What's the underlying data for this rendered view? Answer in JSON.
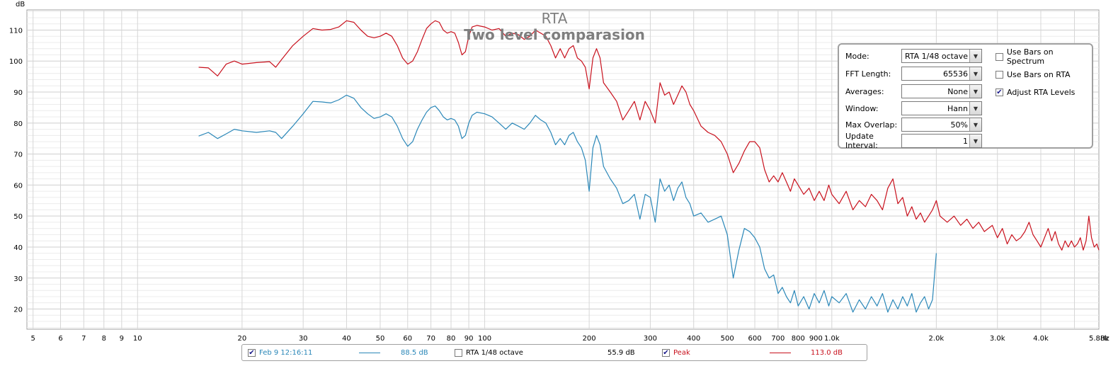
{
  "chart_data": {
    "type": "line",
    "title": "RTA",
    "subtitle": "Two level comparasion",
    "ylabel": "dB",
    "xunit": "Hz",
    "xscale": "log",
    "xlim": [
      4.8,
      5880
    ],
    "ylim": [
      13.5,
      116.5
    ],
    "y_ticks": [
      "20",
      "30",
      "40",
      "50",
      "60",
      "70",
      "80",
      "90",
      "100",
      "110"
    ],
    "x_ticks": [
      "5",
      "6",
      "7",
      "8",
      "9",
      "10",
      "20",
      "30",
      "40",
      "50",
      "60",
      "70",
      "80",
      "90",
      "100",
      "200",
      "300",
      "400",
      "500",
      "600",
      "700",
      "800",
      "900",
      "1.0k",
      "2.0k",
      "3.0k",
      "4.0k",
      "5.88k"
    ],
    "grid": true,
    "series": [
      {
        "name": "Peak",
        "color": "#c8101c",
        "points": [
          [
            15,
            98
          ],
          [
            16,
            97.8
          ],
          [
            17,
            95.2
          ],
          [
            18,
            99
          ],
          [
            19,
            100
          ],
          [
            20,
            99
          ],
          [
            22,
            99.5
          ],
          [
            24,
            99.8
          ],
          [
            25,
            98
          ],
          [
            26,
            100.5
          ],
          [
            28,
            105
          ],
          [
            30,
            108
          ],
          [
            32,
            110.5
          ],
          [
            34,
            110
          ],
          [
            36,
            110.2
          ],
          [
            38,
            111
          ],
          [
            40,
            113
          ],
          [
            42,
            112.5
          ],
          [
            44,
            110
          ],
          [
            46,
            108
          ],
          [
            48,
            107.5
          ],
          [
            50,
            108
          ],
          [
            52,
            109
          ],
          [
            54,
            108
          ],
          [
            56,
            105
          ],
          [
            58,
            101
          ],
          [
            60,
            99
          ],
          [
            62,
            100
          ],
          [
            64,
            103
          ],
          [
            66,
            107
          ],
          [
            68,
            110.5
          ],
          [
            70,
            112
          ],
          [
            72,
            113
          ],
          [
            74,
            112.5
          ],
          [
            76,
            110
          ],
          [
            78,
            109
          ],
          [
            80,
            109.5
          ],
          [
            82,
            109
          ],
          [
            84,
            106
          ],
          [
            86,
            102
          ],
          [
            88,
            103
          ],
          [
            90,
            108
          ],
          [
            92,
            111
          ],
          [
            95,
            111.5
          ],
          [
            100,
            111
          ],
          [
            105,
            110
          ],
          [
            110,
            110.5
          ],
          [
            115,
            108
          ],
          [
            120,
            109
          ],
          [
            125,
            108.5
          ],
          [
            130,
            107
          ],
          [
            135,
            108
          ],
          [
            140,
            110
          ],
          [
            145,
            109
          ],
          [
            150,
            108
          ],
          [
            155,
            105
          ],
          [
            160,
            101
          ],
          [
            165,
            104
          ],
          [
            170,
            101
          ],
          [
            175,
            104
          ],
          [
            180,
            105
          ],
          [
            185,
            101
          ],
          [
            190,
            100
          ],
          [
            195,
            98
          ],
          [
            200,
            91
          ],
          [
            205,
            101
          ],
          [
            210,
            104
          ],
          [
            215,
            101
          ],
          [
            220,
            93
          ],
          [
            230,
            90
          ],
          [
            240,
            87
          ],
          [
            250,
            81
          ],
          [
            260,
            84
          ],
          [
            270,
            87
          ],
          [
            280,
            81
          ],
          [
            290,
            87
          ],
          [
            300,
            84
          ],
          [
            310,
            80
          ],
          [
            320,
            93
          ],
          [
            330,
            89
          ],
          [
            340,
            90
          ],
          [
            350,
            86
          ],
          [
            360,
            89
          ],
          [
            370,
            92
          ],
          [
            380,
            90
          ],
          [
            390,
            86
          ],
          [
            400,
            84
          ],
          [
            420,
            79
          ],
          [
            440,
            77
          ],
          [
            460,
            76
          ],
          [
            480,
            74
          ],
          [
            500,
            70
          ],
          [
            520,
            64
          ],
          [
            540,
            67
          ],
          [
            560,
            71
          ],
          [
            580,
            74
          ],
          [
            600,
            74
          ],
          [
            620,
            72
          ],
          [
            640,
            65
          ],
          [
            660,
            61
          ],
          [
            680,
            63
          ],
          [
            700,
            61
          ],
          [
            720,
            64
          ],
          [
            740,
            61
          ],
          [
            760,
            58
          ],
          [
            780,
            62
          ],
          [
            800,
            60
          ],
          [
            830,
            57
          ],
          [
            860,
            59
          ],
          [
            890,
            55
          ],
          [
            920,
            58
          ],
          [
            950,
            55
          ],
          [
            980,
            60
          ],
          [
            1000,
            57
          ],
          [
            1050,
            54
          ],
          [
            1100,
            58
          ],
          [
            1150,
            52
          ],
          [
            1200,
            55
          ],
          [
            1250,
            53
          ],
          [
            1300,
            57
          ],
          [
            1350,
            55
          ],
          [
            1400,
            52
          ],
          [
            1450,
            59
          ],
          [
            1500,
            62
          ],
          [
            1550,
            54
          ],
          [
            1600,
            56
          ],
          [
            1650,
            50
          ],
          [
            1700,
            53
          ],
          [
            1750,
            49
          ],
          [
            1800,
            51
          ],
          [
            1850,
            48
          ],
          [
            1900,
            50
          ],
          [
            1950,
            52
          ],
          [
            2000,
            55
          ],
          [
            2050,
            50
          ],
          [
            2150,
            48
          ],
          [
            2250,
            50
          ],
          [
            2350,
            47
          ],
          [
            2450,
            49
          ],
          [
            2550,
            46
          ],
          [
            2650,
            48
          ],
          [
            2750,
            45
          ],
          [
            2900,
            47
          ],
          [
            3000,
            43
          ],
          [
            3100,
            46
          ],
          [
            3200,
            41
          ],
          [
            3300,
            44
          ],
          [
            3400,
            42
          ],
          [
            3500,
            43
          ],
          [
            3600,
            45
          ],
          [
            3700,
            48
          ],
          [
            3800,
            44
          ],
          [
            3900,
            42
          ],
          [
            4000,
            40
          ],
          [
            4100,
            43
          ],
          [
            4200,
            46
          ],
          [
            4300,
            42
          ],
          [
            4400,
            45
          ],
          [
            4500,
            41
          ],
          [
            4600,
            39
          ],
          [
            4700,
            42
          ],
          [
            4800,
            40
          ],
          [
            4900,
            42
          ],
          [
            5000,
            40
          ],
          [
            5100,
            41
          ],
          [
            5200,
            43
          ],
          [
            5300,
            39
          ],
          [
            5400,
            42
          ],
          [
            5500,
            50
          ],
          [
            5600,
            43
          ],
          [
            5700,
            40
          ],
          [
            5800,
            41
          ],
          [
            5880,
            39
          ]
        ]
      },
      {
        "name": "Feb 9 12:16:11",
        "color": "#2a87b8",
        "points": [
          [
            15,
            75.8
          ],
          [
            16,
            77
          ],
          [
            17,
            75
          ],
          [
            18,
            76.5
          ],
          [
            19,
            78
          ],
          [
            20,
            77.5
          ],
          [
            22,
            77
          ],
          [
            24,
            77.5
          ],
          [
            25,
            77
          ],
          [
            26,
            75
          ],
          [
            28,
            79
          ],
          [
            30,
            83
          ],
          [
            32,
            87
          ],
          [
            34,
            86.8
          ],
          [
            36,
            86.5
          ],
          [
            38,
            87.5
          ],
          [
            40,
            89
          ],
          [
            42,
            88
          ],
          [
            44,
            85
          ],
          [
            46,
            83
          ],
          [
            48,
            81.5
          ],
          [
            50,
            82
          ],
          [
            52,
            83
          ],
          [
            54,
            82
          ],
          [
            56,
            79
          ],
          [
            58,
            75
          ],
          [
            60,
            72.5
          ],
          [
            62,
            74
          ],
          [
            64,
            78
          ],
          [
            66,
            81
          ],
          [
            68,
            83.5
          ],
          [
            70,
            85
          ],
          [
            72,
            85.5
          ],
          [
            74,
            84
          ],
          [
            76,
            82
          ],
          [
            78,
            81
          ],
          [
            80,
            81.5
          ],
          [
            82,
            81
          ],
          [
            84,
            79
          ],
          [
            86,
            75
          ],
          [
            88,
            76
          ],
          [
            90,
            80
          ],
          [
            92,
            82.5
          ],
          [
            95,
            83.5
          ],
          [
            100,
            83
          ],
          [
            105,
            82
          ],
          [
            110,
            80
          ],
          [
            115,
            78
          ],
          [
            120,
            80
          ],
          [
            125,
            79
          ],
          [
            130,
            78
          ],
          [
            135,
            80
          ],
          [
            140,
            82.5
          ],
          [
            145,
            81
          ],
          [
            150,
            80
          ],
          [
            155,
            77
          ],
          [
            160,
            73
          ],
          [
            165,
            75
          ],
          [
            170,
            73
          ],
          [
            175,
            76
          ],
          [
            180,
            77
          ],
          [
            185,
            74
          ],
          [
            190,
            72
          ],
          [
            195,
            68
          ],
          [
            200,
            58
          ],
          [
            205,
            72
          ],
          [
            210,
            76
          ],
          [
            215,
            73
          ],
          [
            220,
            66
          ],
          [
            230,
            62
          ],
          [
            240,
            59
          ],
          [
            250,
            54
          ],
          [
            260,
            55
          ],
          [
            270,
            57
          ],
          [
            280,
            49
          ],
          [
            290,
            57
          ],
          [
            300,
            56
          ],
          [
            310,
            48
          ],
          [
            320,
            62
          ],
          [
            330,
            58
          ],
          [
            340,
            60
          ],
          [
            350,
            55
          ],
          [
            360,
            59
          ],
          [
            370,
            61
          ],
          [
            380,
            56
          ],
          [
            390,
            54
          ],
          [
            400,
            50
          ],
          [
            420,
            51
          ],
          [
            440,
            48
          ],
          [
            460,
            49
          ],
          [
            480,
            50
          ],
          [
            500,
            44
          ],
          [
            520,
            30
          ],
          [
            540,
            39
          ],
          [
            560,
            46
          ],
          [
            580,
            45
          ],
          [
            600,
            43
          ],
          [
            620,
            40
          ],
          [
            640,
            33
          ],
          [
            660,
            30
          ],
          [
            680,
            31
          ],
          [
            700,
            25
          ],
          [
            720,
            27
          ],
          [
            740,
            24
          ],
          [
            760,
            22
          ],
          [
            780,
            26
          ],
          [
            800,
            21
          ],
          [
            830,
            24
          ],
          [
            860,
            20
          ],
          [
            890,
            25
          ],
          [
            920,
            22
          ],
          [
            950,
            26
          ],
          [
            980,
            21
          ],
          [
            1000,
            24
          ],
          [
            1050,
            22
          ],
          [
            1100,
            25
          ],
          [
            1150,
            19
          ],
          [
            1200,
            23
          ],
          [
            1250,
            20
          ],
          [
            1300,
            24
          ],
          [
            1350,
            21
          ],
          [
            1400,
            25
          ],
          [
            1450,
            19
          ],
          [
            1500,
            23
          ],
          [
            1550,
            20
          ],
          [
            1600,
            24
          ],
          [
            1650,
            21
          ],
          [
            1700,
            25
          ],
          [
            1750,
            19
          ],
          [
            1800,
            22
          ],
          [
            1850,
            24
          ],
          [
            1900,
            20
          ],
          [
            1950,
            23
          ],
          [
            2000,
            38
          ]
        ]
      }
    ]
  },
  "controls": {
    "mode_label": "Mode:",
    "mode_value": "RTA 1/48 octave",
    "fft_label": "FFT Length:",
    "fft_value": "65536",
    "averages_label": "Averages:",
    "averages_value": "None",
    "window_label": "Window:",
    "window_value": "Hann",
    "overlap_label": "Max Overlap:",
    "overlap_value": "50%",
    "update_label": "Update Interval:",
    "update_value": "1",
    "bars_spectrum_label": "Use Bars on Spectrum",
    "bars_spectrum_checked": false,
    "bars_rta_label": "Use Bars on RTA",
    "bars_rta_checked": false,
    "adjust_label": "Adjust RTA Levels",
    "adjust_checked": true
  },
  "legend": {
    "item1_label": "Feb 9 12:16:11",
    "item1_value": "88.5 dB",
    "item1_checked": true,
    "item1_color": "#2a87b8",
    "item2_label": "RTA 1/48 octave",
    "item2_value": "55.9 dB",
    "item2_checked": false,
    "item3_label": "Peak",
    "item3_value": "113.0 dB",
    "item3_checked": true,
    "item3_color": "#c8101c"
  }
}
